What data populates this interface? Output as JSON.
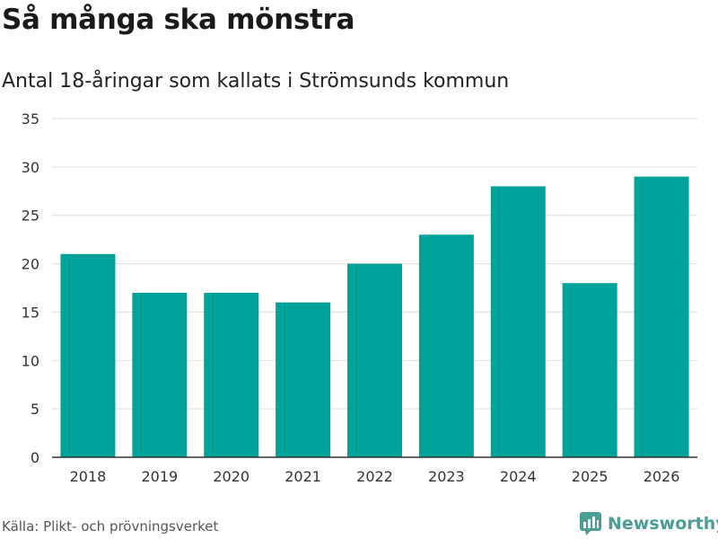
{
  "header": {
    "title": "Så många ska mönstra",
    "subtitle": "Antal 18-åringar som kallats i Strömsunds kommun"
  },
  "footer": {
    "source": "Källa: Plikt- och prövningsverket",
    "brand": "Newsworthy",
    "brand_icon": "newsworthy-logo-icon",
    "brand_color": "#4a9e96"
  },
  "chart_data": {
    "type": "bar",
    "title": "Så många ska mönstra",
    "subtitle": "Antal 18-åringar som kallats i Strömsunds kommun",
    "xlabel": "",
    "ylabel": "",
    "categories": [
      "2018",
      "2019",
      "2020",
      "2021",
      "2022",
      "2023",
      "2024",
      "2025",
      "2026"
    ],
    "values": [
      21,
      17,
      17,
      16,
      20,
      23,
      28,
      18,
      29
    ],
    "ylim": [
      0,
      35
    ],
    "yticks": [
      0,
      5,
      10,
      15,
      20,
      25,
      30,
      35
    ],
    "grid": true,
    "legend": "none",
    "bar_color": "#00a39a",
    "grid_color": "#dddddd",
    "axis_color": "#333333"
  }
}
